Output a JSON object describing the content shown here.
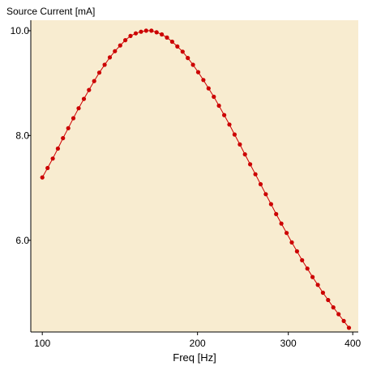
{
  "colors": {
    "plot_background": "#f8ecd0",
    "axis": "#000000",
    "series": "#cc0000",
    "page_background": "#ffffff"
  },
  "chart_data": {
    "type": "line",
    "title": "Source Current [mA]",
    "xlabel": "Freq [Hz]",
    "ylabel": "",
    "x_scale": "log",
    "xlim": [
      95,
      410
    ],
    "ylim": [
      4.25,
      10.2
    ],
    "x_ticks": [
      100,
      200,
      300,
      400
    ],
    "x_tick_labels": [
      "100",
      "200",
      "300",
      "400"
    ],
    "y_ticks": [
      6.0,
      8.0,
      10.0
    ],
    "y_tick_labels": [
      "6.0",
      "8.0",
      "10.0"
    ],
    "grid": false,
    "legend": "none",
    "series": [
      {
        "marker": "circle",
        "x": [
          100.0,
          102.4,
          104.8,
          107.2,
          109.7,
          112.3,
          114.9,
          117.6,
          120.4,
          123.2,
          126.1,
          129.0,
          132.1,
          135.2,
          138.3,
          141.6,
          144.9,
          148.3,
          151.8,
          155.4,
          159.0,
          162.8,
          166.6,
          170.5,
          174.5,
          178.6,
          182.8,
          187.1,
          191.5,
          196.0,
          200.6,
          205.3,
          210.1,
          215.1,
          220.1,
          225.3,
          230.6,
          236.0,
          241.6,
          247.2,
          253.0,
          259.0,
          265.1,
          271.3,
          277.7,
          284.2,
          290.8,
          297.7,
          304.7,
          311.8,
          319.1,
          326.6,
          334.3,
          342.2,
          350.2,
          358.4,
          366.8,
          375.5,
          384.3,
          393.3
        ],
        "y": [
          7.2,
          7.38,
          7.56,
          7.75,
          7.95,
          8.14,
          8.33,
          8.52,
          8.7,
          8.87,
          9.04,
          9.2,
          9.35,
          9.49,
          9.61,
          9.72,
          9.82,
          9.9,
          9.95,
          9.98,
          10.0,
          10.0,
          9.97,
          9.93,
          9.87,
          9.79,
          9.7,
          9.6,
          9.48,
          9.35,
          9.21,
          9.06,
          8.9,
          8.74,
          8.57,
          8.39,
          8.21,
          8.02,
          7.83,
          7.64,
          7.45,
          7.26,
          7.07,
          6.88,
          6.69,
          6.5,
          6.32,
          6.14,
          5.96,
          5.79,
          5.62,
          5.46,
          5.3,
          5.15,
          5.0,
          4.86,
          4.72,
          4.59,
          4.46,
          4.33
        ]
      }
    ]
  }
}
